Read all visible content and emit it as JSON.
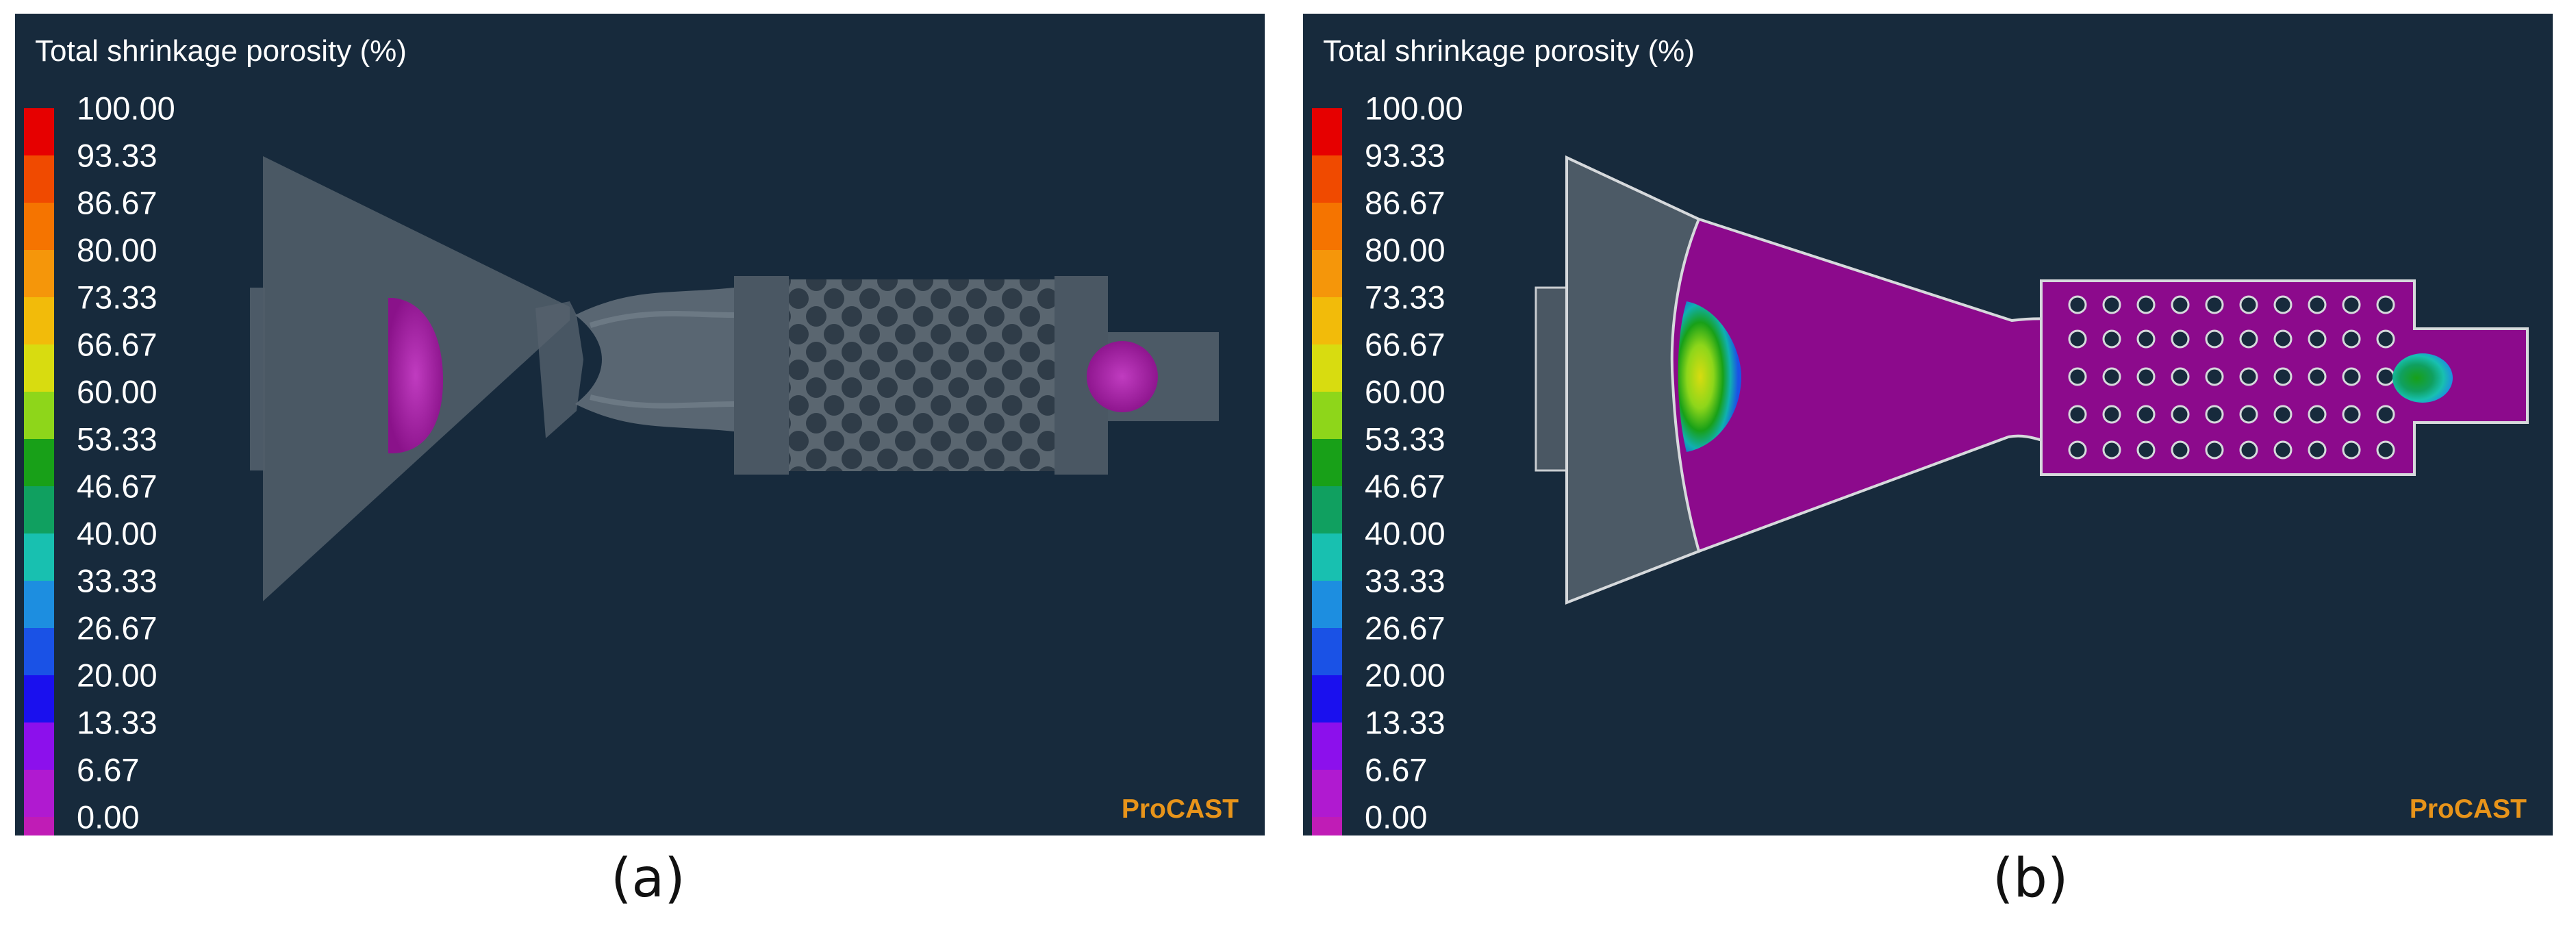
{
  "panels": [
    {
      "id": "a",
      "title": "Total shrinkage porosity (%)",
      "brand": "ProCAST",
      "caption": "(a)"
    },
    {
      "id": "b",
      "title": "Total shrinkage porosity (%)",
      "brand": "ProCAST",
      "caption": "(b)"
    }
  ],
  "legend": {
    "ticks": [
      "100.00",
      "93.33",
      "86.67",
      "80.00",
      "73.33",
      "66.67",
      "60.00",
      "53.33",
      "46.67",
      "40.00",
      "33.33",
      "26.67",
      "20.00",
      "13.33",
      "6.67",
      "0.00"
    ],
    "colors": [
      "#e60000",
      "#f04a00",
      "#f57400",
      "#f5960a",
      "#f2bb0a",
      "#d8dc10",
      "#8ed61a",
      "#18a018",
      "#10a060",
      "#18c0b0",
      "#1d8ee0",
      "#1a52e6",
      "#1a10ee",
      "#8c10ec",
      "#b01ad0",
      "#c01cb6"
    ]
  },
  "colors": {
    "panel_bg": "#172a3c",
    "model_fill": "#4c5a66",
    "porosity_magenta": "#a01ca0",
    "section_magenta": "#8c0a8c",
    "brand": "#e8941a"
  }
}
